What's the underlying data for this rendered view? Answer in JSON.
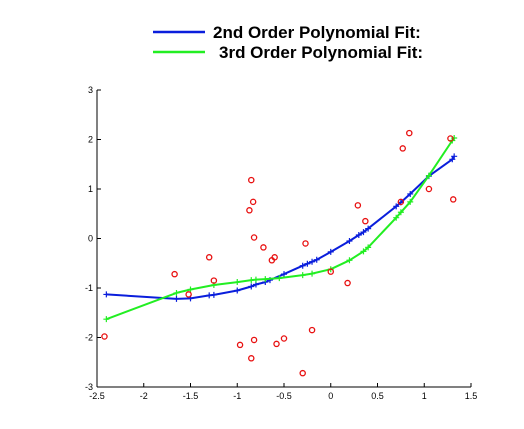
{
  "chart_data": {
    "type": "scatter",
    "xlim": [
      -2.5,
      1.5
    ],
    "ylim": [
      -3,
      3
    ],
    "xticks": [
      -2.5,
      -2,
      -1.5,
      -1,
      -0.5,
      0,
      0.5,
      1,
      1.5
    ],
    "xtick_labels": [
      "-2.5",
      "-2",
      "-1.5",
      "-1",
      "-0.5",
      "0",
      "0.5",
      "1",
      "1.5"
    ],
    "yticks": [
      -3,
      -2,
      -1,
      0,
      1,
      2,
      3
    ],
    "ytick_labels": [
      "-3",
      "-2",
      "-1",
      "0",
      "1",
      "2",
      "3"
    ],
    "grid": false,
    "legend_position": "top-right",
    "series": [
      {
        "kind": "line",
        "name": "2nd Order Polynomial Fit:",
        "color": "#0a1edc",
        "marker": "plus",
        "points": [
          [
            -2.4,
            -1.13
          ],
          [
            -1.65,
            -1.22
          ],
          [
            -1.5,
            -1.21
          ],
          [
            -1.3,
            -1.15
          ],
          [
            -1.25,
            -1.14
          ],
          [
            -1.0,
            -1.05
          ],
          [
            -0.85,
            -0.97
          ],
          [
            -0.8,
            -0.93
          ],
          [
            -0.7,
            -0.88
          ],
          [
            -0.65,
            -0.84
          ],
          [
            -0.5,
            -0.72
          ],
          [
            -0.3,
            -0.55
          ],
          [
            -0.25,
            -0.51
          ],
          [
            -0.2,
            -0.47
          ],
          [
            -0.15,
            -0.43
          ],
          [
            0.0,
            -0.27
          ],
          [
            0.2,
            -0.05
          ],
          [
            0.3,
            0.07
          ],
          [
            0.35,
            0.13
          ],
          [
            0.4,
            0.2
          ],
          [
            0.7,
            0.65
          ],
          [
            0.75,
            0.73
          ],
          [
            0.85,
            0.9
          ],
          [
            1.05,
            1.26
          ],
          [
            1.3,
            1.6
          ],
          [
            1.32,
            1.66
          ]
        ]
      },
      {
        "kind": "line",
        "name": "3rd Order Polynomial Fit:",
        "color": "#22ee22",
        "marker": "plus",
        "points": [
          [
            -2.4,
            -1.63
          ],
          [
            -1.65,
            -1.1
          ],
          [
            -1.5,
            -1.03
          ],
          [
            -1.25,
            -0.94
          ],
          [
            -1.0,
            -0.88
          ],
          [
            -0.85,
            -0.84
          ],
          [
            -0.8,
            -0.83
          ],
          [
            -0.7,
            -0.82
          ],
          [
            -0.55,
            -0.8
          ],
          [
            -0.3,
            -0.74
          ],
          [
            -0.2,
            -0.71
          ],
          [
            0.0,
            -0.62
          ],
          [
            0.2,
            -0.44
          ],
          [
            0.35,
            -0.26
          ],
          [
            0.4,
            -0.18
          ],
          [
            0.7,
            0.42
          ],
          [
            0.75,
            0.53
          ],
          [
            0.85,
            0.74
          ],
          [
            1.05,
            1.27
          ],
          [
            1.3,
            1.98
          ],
          [
            1.32,
            2.03
          ]
        ]
      },
      {
        "kind": "scatter",
        "color": "#e81010",
        "marker": "circle",
        "points": [
          [
            -2.42,
            -1.98
          ],
          [
            -1.67,
            -0.72
          ],
          [
            -1.52,
            -1.13
          ],
          [
            -1.3,
            -0.38
          ],
          [
            -1.25,
            -0.85
          ],
          [
            -0.97,
            -2.15
          ],
          [
            -0.85,
            -2.42
          ],
          [
            -0.85,
            1.18
          ],
          [
            -0.87,
            0.57
          ],
          [
            -0.83,
            0.74
          ],
          [
            -0.82,
            0.02
          ],
          [
            -0.82,
            -2.05
          ],
          [
            -0.72,
            -0.18
          ],
          [
            -0.63,
            -0.44
          ],
          [
            -0.6,
            -0.38
          ],
          [
            -0.58,
            -2.13
          ],
          [
            -0.5,
            -2.02
          ],
          [
            -0.3,
            -2.72
          ],
          [
            -0.27,
            -0.1
          ],
          [
            -0.2,
            -1.85
          ],
          [
            0.0,
            -0.67
          ],
          [
            0.18,
            -0.9
          ],
          [
            0.29,
            0.67
          ],
          [
            0.37,
            0.35
          ],
          [
            0.75,
            0.74
          ],
          [
            0.77,
            1.82
          ],
          [
            0.84,
            2.13
          ],
          [
            1.05,
            1.0
          ],
          [
            1.28,
            2.02
          ],
          [
            1.31,
            0.79
          ]
        ]
      }
    ]
  }
}
